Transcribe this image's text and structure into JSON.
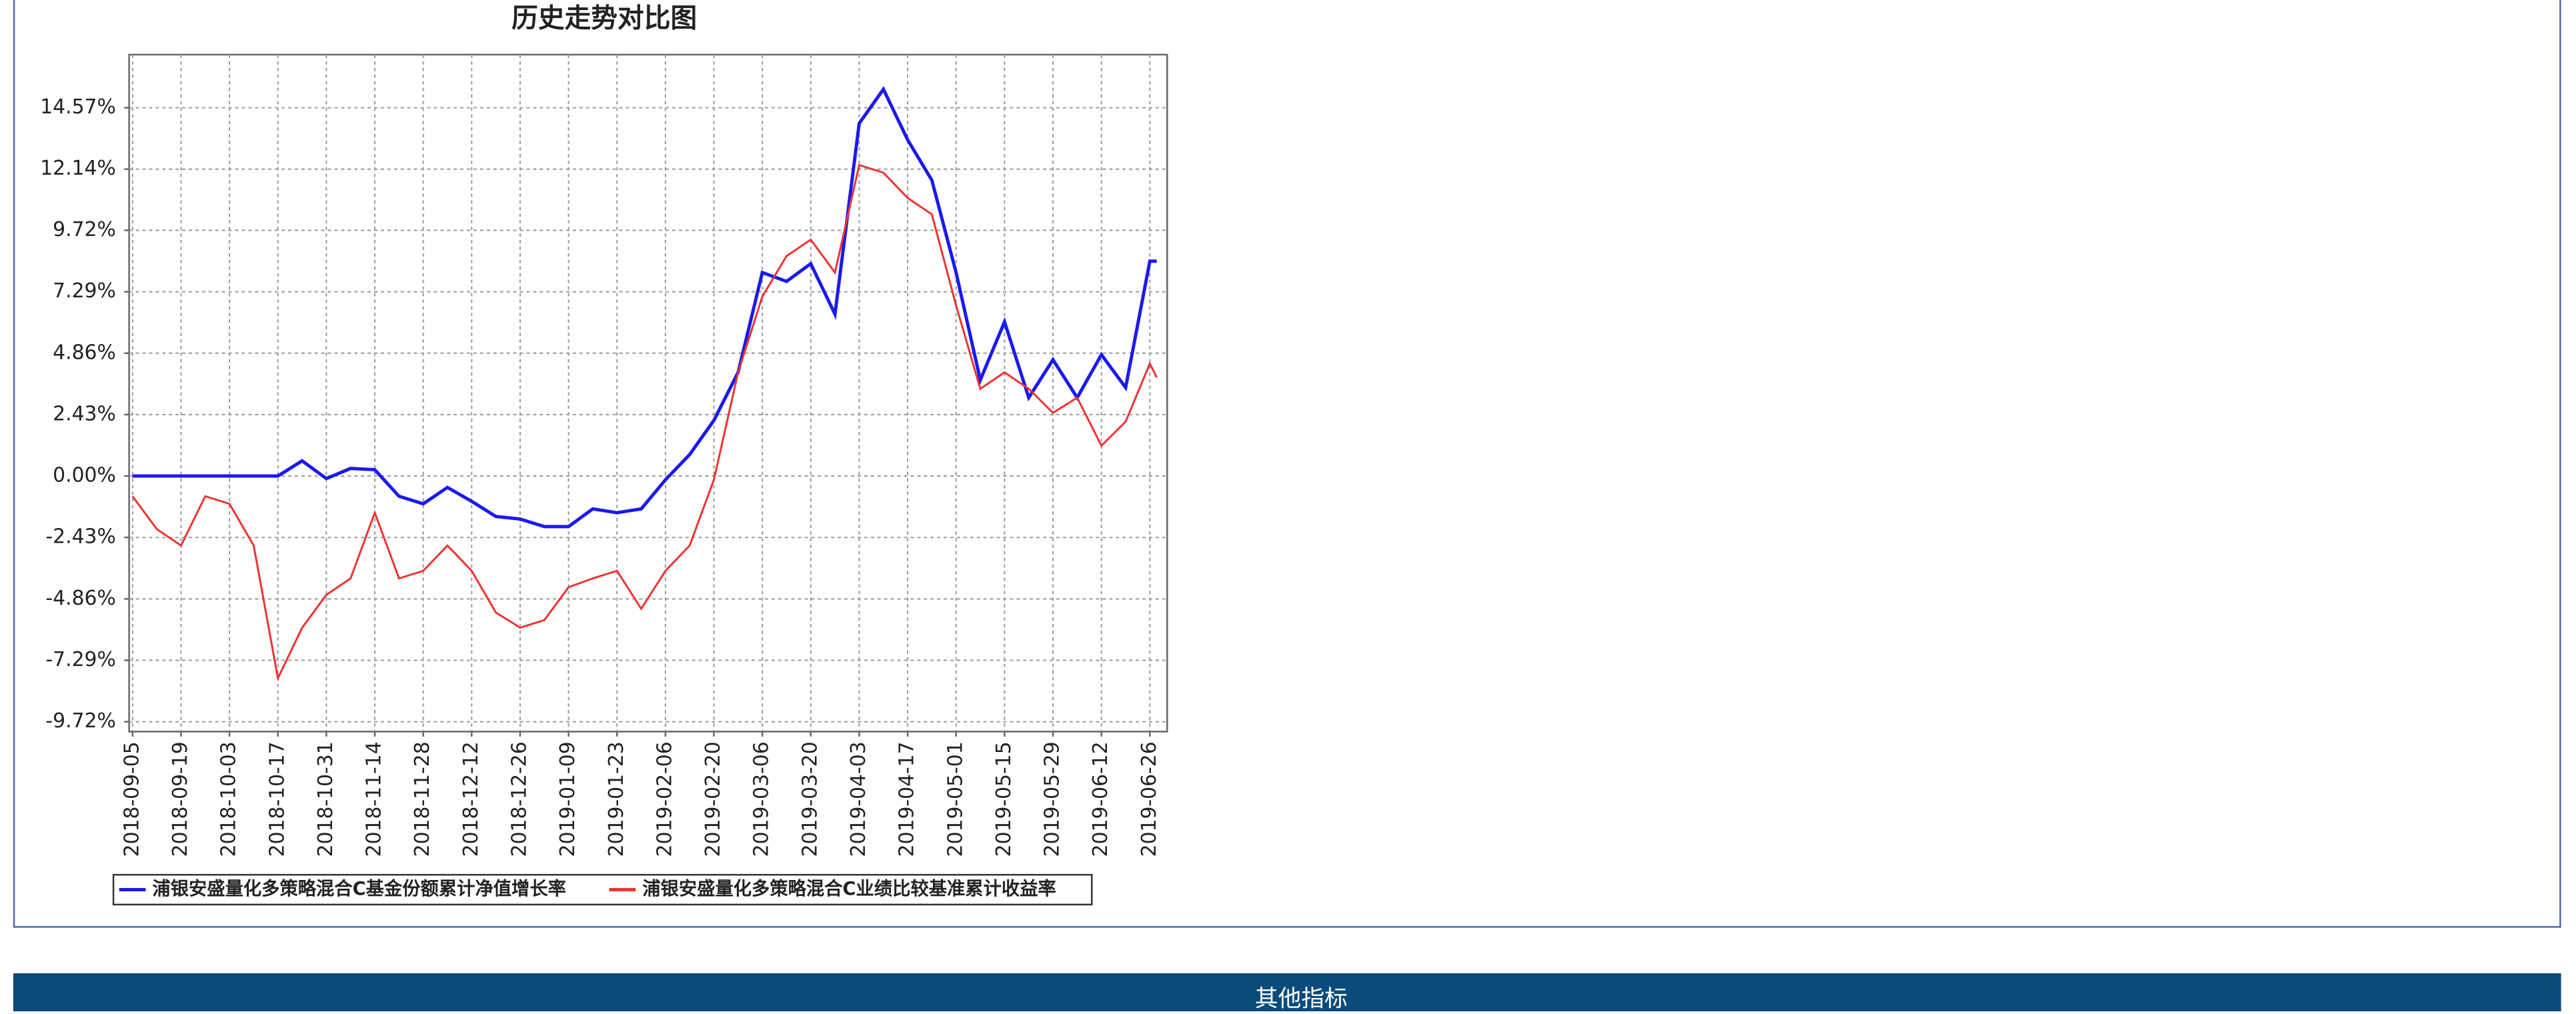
{
  "chart_data": {
    "type": "line",
    "title": "历史走势对比图",
    "x": [
      "2018-09-05",
      "2018-09-12",
      "2018-09-19",
      "2018-09-26",
      "2018-10-03",
      "2018-10-10",
      "2018-10-17",
      "2018-10-24",
      "2018-10-31",
      "2018-11-07",
      "2018-11-14",
      "2018-11-21",
      "2018-11-28",
      "2018-12-05",
      "2018-12-12",
      "2018-12-19",
      "2018-12-26",
      "2019-01-02",
      "2019-01-09",
      "2019-01-16",
      "2019-01-23",
      "2019-01-30",
      "2019-02-06",
      "2019-02-13",
      "2019-02-20",
      "2019-02-27",
      "2019-03-06",
      "2019-03-13",
      "2019-03-20",
      "2019-03-27",
      "2019-04-03",
      "2019-04-10",
      "2019-04-17",
      "2019-04-24",
      "2019-05-01",
      "2019-05-08",
      "2019-05-15",
      "2019-05-22",
      "2019-05-29",
      "2019-06-05",
      "2019-06-12",
      "2019-06-19",
      "2019-06-26",
      "2019-06-28"
    ],
    "series": [
      {
        "name": "浦银安盛量化多策略混合C基金份额累计净值增长率",
        "color": "#1a1aee",
        "values": [
          0,
          0,
          0,
          0,
          0,
          0,
          0,
          0.6,
          -0.1,
          0.3,
          0.25,
          -0.8,
          -1.1,
          -0.45,
          -1.0,
          -1.6,
          -1.7,
          -2.0,
          -2.0,
          -1.3,
          -1.45,
          -1.3,
          -0.15,
          0.85,
          2.2,
          4.1,
          8.05,
          7.7,
          8.4,
          6.4,
          13.95,
          15.3,
          13.3,
          11.7,
          8.05,
          3.8,
          6.1,
          3.1,
          4.6,
          3.1,
          4.8,
          3.5,
          8.5,
          8.5
        ]
      },
      {
        "name": "浦银安盛量化多策略混合C业绩比较基准累计收益率",
        "color": "#ee3333",
        "values": [
          -0.8,
          -2.1,
          -2.75,
          -0.8,
          -1.1,
          -2.75,
          -8.0,
          -6.0,
          -4.7,
          -4.05,
          -1.45,
          -4.05,
          -3.75,
          -2.75,
          -3.75,
          -5.4,
          -6.0,
          -5.7,
          -4.4,
          -4.05,
          -3.75,
          -5.25,
          -3.75,
          -2.75,
          -0.15,
          4.1,
          7.1,
          8.7,
          9.35,
          8.05,
          12.3,
          12.0,
          11.0,
          10.35,
          6.75,
          3.45,
          4.1,
          3.45,
          2.5,
          3.1,
          1.2,
          2.15,
          4.45,
          3.9
        ]
      }
    ],
    "xlim": [
      "2018-09-04",
      "2019-07-01"
    ],
    "xticks": [
      "2018-09-05",
      "2018-09-19",
      "2018-10-03",
      "2018-10-17",
      "2018-10-31",
      "2018-11-14",
      "2018-11-28",
      "2018-12-12",
      "2018-12-26",
      "2019-01-09",
      "2019-01-23",
      "2019-02-06",
      "2019-02-20",
      "2019-03-06",
      "2019-03-20",
      "2019-04-03",
      "2019-04-17",
      "2019-05-01",
      "2019-05-15",
      "2019-05-29",
      "2019-06-12",
      "2019-06-26"
    ],
    "ylim": [
      -10.11,
      16.67
    ],
    "yticks": [
      {
        "value": -9.72,
        "label": "-9.72%"
      },
      {
        "value": -7.29,
        "label": "-7.29%"
      },
      {
        "value": -4.86,
        "label": "-4.86%"
      },
      {
        "value": -2.43,
        "label": "-2.43%"
      },
      {
        "value": 0,
        "label": "0.00%"
      },
      {
        "value": 2.43,
        "label": "2.43%"
      },
      {
        "value": 4.86,
        "label": "4.86%"
      },
      {
        "value": 7.29,
        "label": "7.29%"
      },
      {
        "value": 9.72,
        "label": "9.72%"
      },
      {
        "value": 12.14,
        "label": "12.14%"
      },
      {
        "value": 14.57,
        "label": "14.57%"
      }
    ],
    "grid": true
  },
  "section_header": "其他指标"
}
